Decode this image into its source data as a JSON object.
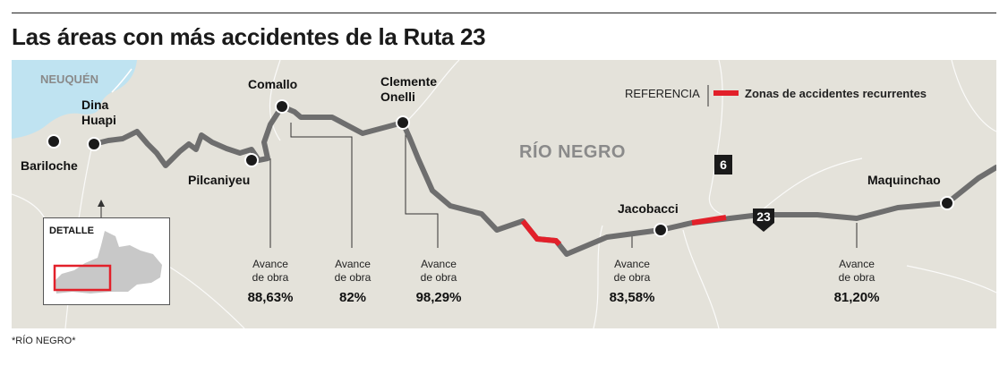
{
  "title": "Las áreas con más accidentes de la Ruta 23",
  "colors": {
    "background_land": "#e4e2da",
    "lake": "#bfe3f1",
    "route": "#6e6e6e",
    "accident_zone": "#e2202a",
    "province_text": "#8a8a8a"
  },
  "regions": {
    "neuquen": "NEUQUÉN",
    "rio_negro": "RÍO NEGRO"
  },
  "cities": {
    "bariloche": "Bariloche",
    "dina_huapi_1": "Dina",
    "dina_huapi_2": "Huapi",
    "comallo": "Comallo",
    "clemente_onelli_1": "Clemente",
    "clemente_onelli_2": "Onelli",
    "pilcaniyeu": "Pilcaniyeu",
    "jacobacci": "Jacobacci",
    "maquinchao": "Maquinchao"
  },
  "route_shields": {
    "route_6": "6",
    "route_23": "23"
  },
  "legend": {
    "reference_label": "REFERENCIA",
    "zone_label": "Zonas de accidentes recurrentes"
  },
  "progress": [
    {
      "label_1": "Avance",
      "label_2": "de obra",
      "value": "88,63%"
    },
    {
      "label_1": "Avance",
      "label_2": "de obra",
      "value": "82%"
    },
    {
      "label_1": "Avance",
      "label_2": "de obra",
      "value": "98,29%"
    },
    {
      "label_1": "Avance",
      "label_2": "de obra",
      "value": "83,58%"
    },
    {
      "label_1": "Avance",
      "label_2": "de obra",
      "value": "81,20%"
    }
  ],
  "detail": {
    "title": "DETALLE"
  },
  "footnote": "*RÍO NEGRO*"
}
